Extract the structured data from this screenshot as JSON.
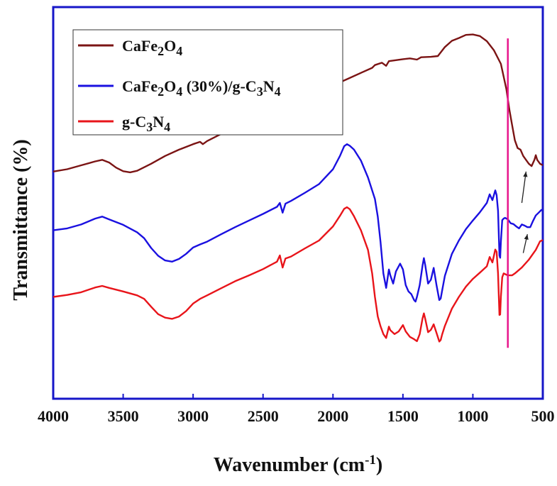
{
  "chart_data": {
    "type": "line",
    "title": "",
    "xlabel": "Wavenumber (cm-1)",
    "xlabel_parts": {
      "main": "Wavenumber (cm",
      "sup": "-1",
      "tail": ")"
    },
    "ylabel": "Transmittance (%)",
    "xlim": [
      4000,
      500
    ],
    "x_reversed": true,
    "x_ticks": [
      "4000",
      "3500",
      "3000",
      "2500",
      "2000",
      "1500",
      "1000",
      "500"
    ],
    "y_ticks_labeled": false,
    "grid": false,
    "legend_position": "top-left",
    "legend": [
      {
        "series": "CaFe2O4",
        "parts": [
          [
            "CaFe",
            ""
          ],
          [
            "2",
            "sub"
          ],
          [
            "O",
            ""
          ],
          [
            "4",
            "sub"
          ]
        ]
      },
      {
        "series": "CaFe2O4 (30%)/g-C3N4",
        "parts": [
          [
            "CaFe",
            ""
          ],
          [
            "2",
            "sub"
          ],
          [
            "O",
            ""
          ],
          [
            "4",
            "sub"
          ],
          [
            " (30%)/g-C",
            ""
          ],
          [
            "3",
            "sub"
          ],
          [
            "N",
            ""
          ],
          [
            "4",
            "sub"
          ]
        ]
      },
      {
        "series": "g-C3N4",
        "parts": [
          [
            "g-C",
            ""
          ],
          [
            "3",
            "sub"
          ],
          [
            "N",
            ""
          ],
          [
            "4",
            "sub"
          ]
        ]
      }
    ],
    "series": [
      {
        "name": "CaFe2O4",
        "color": "#7b1414",
        "points": [
          [
            4000,
            78
          ],
          [
            3900,
            78.6
          ],
          [
            3800,
            79.6
          ],
          [
            3700,
            80.6
          ],
          [
            3650,
            81
          ],
          [
            3600,
            80.3
          ],
          [
            3550,
            79
          ],
          [
            3500,
            78.1
          ],
          [
            3450,
            77.8
          ],
          [
            3400,
            78.2
          ],
          [
            3300,
            80
          ],
          [
            3200,
            82
          ],
          [
            3100,
            83.6
          ],
          [
            3000,
            85
          ],
          [
            2950,
            85.6
          ],
          [
            2930,
            85
          ],
          [
            2900,
            85.8
          ],
          [
            2800,
            87.6
          ],
          [
            2700,
            89.3
          ],
          [
            2600,
            91
          ],
          [
            2500,
            92.6
          ],
          [
            2400,
            94
          ],
          [
            2380,
            94.6
          ],
          [
            2360,
            93.6
          ],
          [
            2340,
            94.6
          ],
          [
            2300,
            95.2
          ],
          [
            2200,
            96.8
          ],
          [
            2100,
            98.4
          ],
          [
            2000,
            100
          ],
          [
            1900,
            101.6
          ],
          [
            1800,
            103.2
          ],
          [
            1720,
            104.5
          ],
          [
            1700,
            105.2
          ],
          [
            1650,
            105.8
          ],
          [
            1620,
            105
          ],
          [
            1600,
            106.2
          ],
          [
            1500,
            106.7
          ],
          [
            1450,
            106.9
          ],
          [
            1400,
            106.6
          ],
          [
            1370,
            107.2
          ],
          [
            1300,
            107.3
          ],
          [
            1250,
            107.5
          ],
          [
            1200,
            109.8
          ],
          [
            1150,
            111.4
          ],
          [
            1100,
            112.1
          ],
          [
            1050,
            112.9
          ],
          [
            1000,
            113
          ],
          [
            950,
            112.6
          ],
          [
            900,
            111.3
          ],
          [
            850,
            109
          ],
          [
            800,
            105.5
          ],
          [
            760,
            99
          ],
          [
            740,
            94
          ],
          [
            720,
            90
          ],
          [
            700,
            86
          ],
          [
            680,
            84
          ],
          [
            660,
            83.6
          ],
          [
            640,
            82
          ],
          [
            620,
            81
          ],
          [
            600,
            80
          ],
          [
            580,
            79.4
          ],
          [
            560,
            81
          ],
          [
            550,
            82.2
          ],
          [
            540,
            81
          ],
          [
            520,
            80
          ],
          [
            500,
            79.6
          ]
        ]
      },
      {
        "name": "CaFe2O4 (30%)/g-C3N4",
        "color": "#1a10e0",
        "points": [
          [
            4000,
            63
          ],
          [
            3900,
            63.5
          ],
          [
            3800,
            64.5
          ],
          [
            3700,
            66
          ],
          [
            3650,
            66.5
          ],
          [
            3600,
            65.8
          ],
          [
            3500,
            64.4
          ],
          [
            3400,
            62.5
          ],
          [
            3350,
            61
          ],
          [
            3300,
            58.5
          ],
          [
            3250,
            56.5
          ],
          [
            3200,
            55.3
          ],
          [
            3150,
            55
          ],
          [
            3100,
            55.7
          ],
          [
            3050,
            57
          ],
          [
            3000,
            58.6
          ],
          [
            2950,
            59.4
          ],
          [
            2900,
            60.1
          ],
          [
            2800,
            62
          ],
          [
            2700,
            63.8
          ],
          [
            2600,
            65.5
          ],
          [
            2500,
            67.2
          ],
          [
            2400,
            69
          ],
          [
            2380,
            70
          ],
          [
            2360,
            67.5
          ],
          [
            2340,
            69.8
          ],
          [
            2300,
            70.5
          ],
          [
            2200,
            72.6
          ],
          [
            2100,
            74.8
          ],
          [
            2000,
            78.6
          ],
          [
            1950,
            82
          ],
          [
            1920,
            84.5
          ],
          [
            1900,
            85
          ],
          [
            1880,
            84.6
          ],
          [
            1850,
            83.6
          ],
          [
            1800,
            80.8
          ],
          [
            1750,
            76.5
          ],
          [
            1700,
            71
          ],
          [
            1680,
            66.5
          ],
          [
            1660,
            60
          ],
          [
            1640,
            52
          ],
          [
            1620,
            48.3
          ],
          [
            1600,
            53
          ],
          [
            1590,
            51.5
          ],
          [
            1570,
            49.4
          ],
          [
            1550,
            52.5
          ],
          [
            1520,
            54.5
          ],
          [
            1500,
            53
          ],
          [
            1480,
            49
          ],
          [
            1460,
            47.4
          ],
          [
            1440,
            46.7
          ],
          [
            1420,
            45.2
          ],
          [
            1410,
            44.8
          ],
          [
            1400,
            46
          ],
          [
            1380,
            49
          ],
          [
            1360,
            54
          ],
          [
            1350,
            55.9
          ],
          [
            1340,
            54
          ],
          [
            1320,
            49.4
          ],
          [
            1300,
            50.4
          ],
          [
            1280,
            53.4
          ],
          [
            1260,
            49
          ],
          [
            1240,
            45.2
          ],
          [
            1230,
            45.6
          ],
          [
            1220,
            47.6
          ],
          [
            1200,
            51.4
          ],
          [
            1150,
            57
          ],
          [
            1100,
            60.4
          ],
          [
            1050,
            63.3
          ],
          [
            1000,
            65.5
          ],
          [
            950,
            67.6
          ],
          [
            900,
            70
          ],
          [
            880,
            72.2
          ],
          [
            860,
            70.7
          ],
          [
            840,
            73.2
          ],
          [
            830,
            72
          ],
          [
            820,
            68
          ],
          [
            810,
            56.6
          ],
          [
            805,
            56
          ],
          [
            800,
            60
          ],
          [
            790,
            65.6
          ],
          [
            780,
            66
          ],
          [
            770,
            66.2
          ],
          [
            750,
            65.8
          ],
          [
            730,
            64.8
          ],
          [
            710,
            64.6
          ],
          [
            690,
            64
          ],
          [
            670,
            63.5
          ],
          [
            650,
            64.5
          ],
          [
            630,
            64.2
          ],
          [
            610,
            63.8
          ],
          [
            590,
            63.8
          ],
          [
            570,
            65.4
          ],
          [
            550,
            66.8
          ],
          [
            530,
            67.5
          ],
          [
            510,
            68.2
          ],
          [
            500,
            68.3
          ]
        ]
      },
      {
        "name": "g-C3N4",
        "color": "#e8141a",
        "points": [
          [
            4000,
            46
          ],
          [
            3900,
            46.5
          ],
          [
            3800,
            47.2
          ],
          [
            3700,
            48.4
          ],
          [
            3650,
            48.8
          ],
          [
            3600,
            48.3
          ],
          [
            3500,
            47.4
          ],
          [
            3400,
            46.4
          ],
          [
            3350,
            45.5
          ],
          [
            3300,
            43.5
          ],
          [
            3250,
            41.6
          ],
          [
            3200,
            40.7
          ],
          [
            3150,
            40.4
          ],
          [
            3100,
            41
          ],
          [
            3050,
            42.4
          ],
          [
            3000,
            44.3
          ],
          [
            2950,
            45.5
          ],
          [
            2900,
            46.4
          ],
          [
            2800,
            48.2
          ],
          [
            2700,
            50
          ],
          [
            2600,
            51.5
          ],
          [
            2500,
            53.1
          ],
          [
            2400,
            55
          ],
          [
            2380,
            56.6
          ],
          [
            2360,
            53.5
          ],
          [
            2340,
            55.8
          ],
          [
            2300,
            56.3
          ],
          [
            2200,
            58.4
          ],
          [
            2100,
            60.4
          ],
          [
            2000,
            64
          ],
          [
            1950,
            66.7
          ],
          [
            1920,
            68.5
          ],
          [
            1900,
            68.9
          ],
          [
            1880,
            68.4
          ],
          [
            1850,
            66.6
          ],
          [
            1800,
            63
          ],
          [
            1750,
            58
          ],
          [
            1720,
            52
          ],
          [
            1700,
            46
          ],
          [
            1680,
            41
          ],
          [
            1660,
            38.5
          ],
          [
            1640,
            36.5
          ],
          [
            1620,
            35.5
          ],
          [
            1600,
            38.4
          ],
          [
            1590,
            37.5
          ],
          [
            1560,
            36.5
          ],
          [
            1530,
            37.2
          ],
          [
            1500,
            38.8
          ],
          [
            1480,
            37.2
          ],
          [
            1450,
            35.8
          ],
          [
            1420,
            35.2
          ],
          [
            1400,
            34.7
          ],
          [
            1380,
            36.5
          ],
          [
            1360,
            40.5
          ],
          [
            1350,
            41.8
          ],
          [
            1340,
            40.3
          ],
          [
            1320,
            37
          ],
          [
            1300,
            37.6
          ],
          [
            1280,
            39
          ],
          [
            1260,
            36.8
          ],
          [
            1240,
            34.6
          ],
          [
            1230,
            35
          ],
          [
            1220,
            36.4
          ],
          [
            1200,
            38.6
          ],
          [
            1150,
            43
          ],
          [
            1100,
            46
          ],
          [
            1050,
            48.6
          ],
          [
            1000,
            50.6
          ],
          [
            950,
            52.2
          ],
          [
            900,
            53.8
          ],
          [
            880,
            56.2
          ],
          [
            860,
            54.8
          ],
          [
            840,
            58.1
          ],
          [
            830,
            57.5
          ],
          [
            820,
            52
          ],
          [
            810,
            41.4
          ],
          [
            805,
            41.5
          ],
          [
            800,
            46
          ],
          [
            790,
            51
          ],
          [
            780,
            52
          ],
          [
            750,
            51.5
          ],
          [
            720,
            51.5
          ],
          [
            700,
            52
          ],
          [
            650,
            53.5
          ],
          [
            600,
            55.5
          ],
          [
            550,
            58
          ],
          [
            520,
            60.2
          ],
          [
            500,
            60.5
          ]
        ]
      }
    ],
    "marker_line": {
      "x": 750,
      "color": "#e8158c"
    },
    "arrows": [
      {
        "series": "CaFe2O4",
        "x_from": 650,
        "y_from": 70,
        "x_to": 620,
        "y_to": 78
      },
      {
        "series": "CaFe2O4 (30%)/g-C3N4",
        "x_from": 640,
        "y_from": 57.2,
        "x_to": 610,
        "y_to": 62
      }
    ]
  }
}
